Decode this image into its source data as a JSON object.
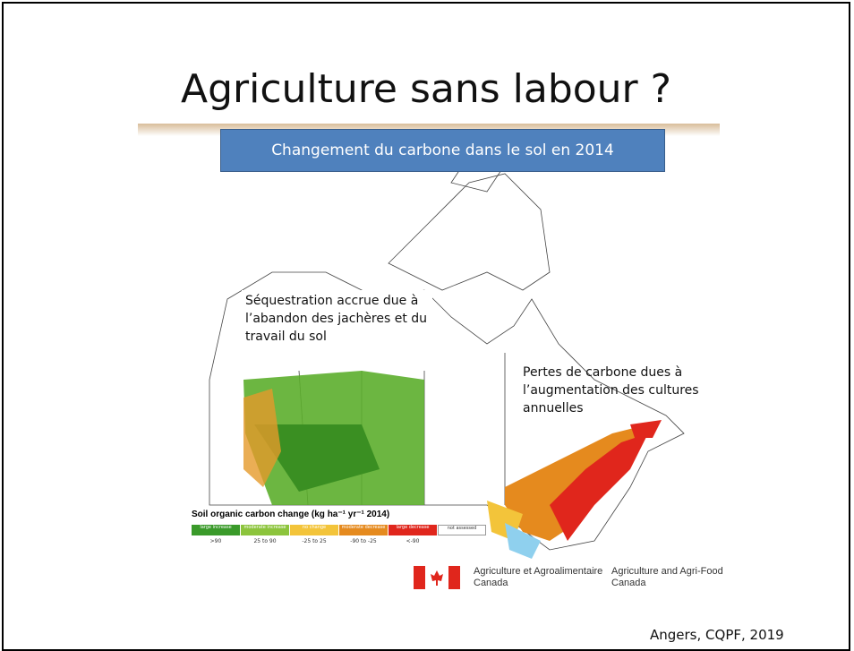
{
  "title": "Agriculture sans labour ?",
  "subtitle": "Changement du carbone dans le sol en 2014",
  "annotations": [
    "Séquestration accrue due à l’abandon des jachères et du travail du sol",
    "Pertes de carbone dues à l’augmentation des cultures annuelles"
  ],
  "legend": {
    "title": "Soil organic carbon change (kg ha⁻¹ yr⁻¹ 2014)",
    "items": [
      {
        "label": "large increase",
        "range": ">90",
        "color": "#3a9a2a"
      },
      {
        "label": "moderate increase",
        "range": "25 to 90",
        "color": "#8cc43c"
      },
      {
        "label": "no change",
        "range": "-25 to 25",
        "color": "#f3c43a"
      },
      {
        "label": "moderate decrease",
        "range": "-90 to -25",
        "color": "#e58a1e"
      },
      {
        "label": "large decrease",
        "range": "<-90",
        "color": "#e0261c"
      },
      {
        "label": "not assessed",
        "range": null,
        "color": "#ffffff"
      }
    ]
  },
  "logo": {
    "fr": "Agriculture et Agroalimentaire Canada",
    "en": "Agriculture and Agri-Food Canada"
  },
  "footer": "Angers,  CQPF, 2019"
}
